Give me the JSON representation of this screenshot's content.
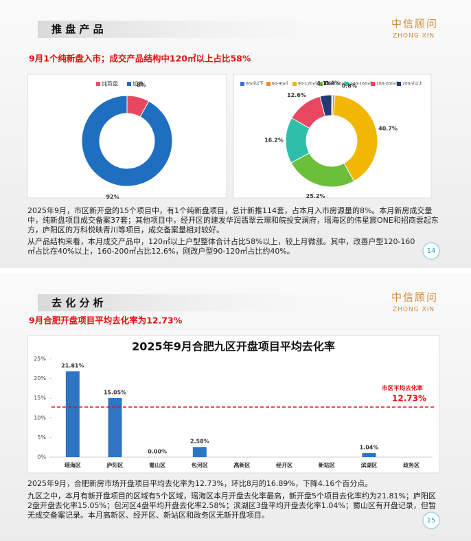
{
  "slides": [
    {
      "header": "推 盘 产 品",
      "logo": {
        "name": "中信顾问",
        "latin": "ZHONG XIN"
      },
      "subtitle": "9月1个纯新盘入市；成交产品结构中120㎡以上占比58%",
      "paragraphs": [
        "2025年9月，市区新开盘的15个项目中，有1个纯新盘项目，总计新推114套，占本月入市房源量的8%。本月新房成交量中，纯新盘项目成交备案37套；其他项目中，经开区的建发华润翡翠云璟和皖投安澜府，瑶海区的伟星宸ONE和招商雲起东方，庐阳区的万科悦映青川等项目，成交备案量相对较好。",
        "从产品结构来看，本月成交产品中，120㎡以上户型整体合计占比58%以上，较上月微涨。其中，改善户型120-160㎡占比在40%以上，160-200㎡占比12.6%，刚改户型90-120㎡占比约40%。"
      ],
      "page_number": 14
    },
    {
      "header": "去 化 分 析",
      "logo": {
        "name": "中信顾问",
        "latin": "ZHONG XIN"
      },
      "subtitle": "9月合肥开盘项目平均去化率为12.73%",
      "paragraphs": [
        "2025年9月，合肥新房市场开盘项目平均去化率为12.73%，环比8月的16.89%，下降4.16个百分点。",
        "九区之中，本月有新开盘项目的区域有5个区域，瑶海区本月开盘去化率最高，新开盘5个项目去化率约为21.81%；庐阳区2盘开盘去化率15.05%；包河区4盘平均开盘去化率2.58%；滨湖区3盘平均开盘去化率1.04%；蜀山区有开盘记录，但暂无成交备案记录。本月高新区、经开区、新站区和政务区无新开盘项目。"
      ],
      "page_number": 15
    }
  ],
  "chart_data": [
    {
      "type": "donut",
      "categories": [
        "纯新盘",
        "加推"
      ],
      "values": [
        8,
        92
      ],
      "value_labels": [
        "8%",
        "92%"
      ],
      "colors": [
        "#e8485f",
        "#1f6fc1"
      ]
    },
    {
      "type": "donut",
      "categories": [
        "60㎡以下",
        "60-90㎡",
        "90-120㎡",
        "120-140㎡",
        "140-160㎡",
        "160-200㎡",
        "200㎡以上"
      ],
      "values": [
        0.4,
        0.8,
        40.7,
        25.2,
        16.2,
        12.6,
        4.1
      ],
      "value_labels": [
        "0.4%",
        "0.8%",
        "40.7%",
        "25.2%",
        "16.2%",
        "12.6%",
        "4.1%"
      ],
      "colors": [
        "#3d73c9",
        "#f08a24",
        "#f2b705",
        "#6cbf3a",
        "#2dbfa8",
        "#e8485f",
        "#1f3b73"
      ]
    },
    {
      "type": "bar",
      "title": "2025年9月合肥九区开盘项目平均去化率",
      "categories": [
        "瑶海区",
        "庐阳区",
        "蜀山区",
        "包河区",
        "高新区",
        "经开区",
        "新站区",
        "滨湖区",
        "政务区"
      ],
      "values": [
        21.81,
        15.05,
        0,
        2.58,
        null,
        null,
        null,
        1.04,
        null
      ],
      "value_labels": [
        "21.81%",
        "15.05%",
        "0.00%",
        "2.58%",
        null,
        null,
        null,
        "1.04%",
        null
      ],
      "color": "#2f75c4",
      "ylim": [
        0,
        25
      ],
      "yticks": [
        {
          "value": 0,
          "label": "0%"
        },
        {
          "value": 5,
          "label": "5%"
        },
        {
          "value": 10,
          "label": "10%"
        },
        {
          "value": 15,
          "label": "15%"
        },
        {
          "value": 20,
          "label": "20%"
        },
        {
          "value": 25,
          "label": "25%"
        }
      ],
      "reference_line": {
        "name": "市区平均去化率",
        "value": 12.73,
        "label": "12.73%",
        "color": "#e01010"
      }
    }
  ]
}
